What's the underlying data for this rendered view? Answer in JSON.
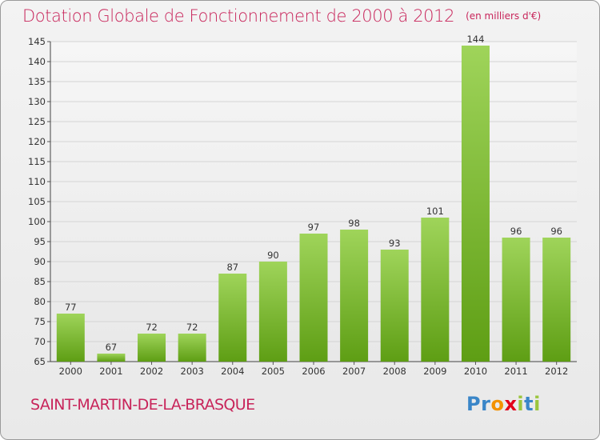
{
  "header": {
    "title": "Dotation Globale de Fonctionnement de 2000 à 2012",
    "unit": "(en milliers d'€)"
  },
  "footer": {
    "commune": "SAINT-MARTIN-DE-LA-BRASQUE",
    "logo_letters": [
      "P",
      "r",
      "o",
      "x",
      "i",
      "t",
      "i"
    ]
  },
  "colors": {
    "title": "#c8245a",
    "bar_top": "#9fd45a",
    "bar_bottom": "#5e9e14",
    "logo": [
      "#3a86c8",
      "#3a86c8",
      "#f39200",
      "#e2001a",
      "#9bc53d",
      "#3a86c8",
      "#9bc53d"
    ]
  },
  "chart_data": {
    "type": "bar",
    "title": "Dotation Globale de Fonctionnement de 2000 à 2012",
    "subtitle": "(en milliers d'€)",
    "categories": [
      "2000",
      "2001",
      "2002",
      "2003",
      "2004",
      "2005",
      "2006",
      "2007",
      "2008",
      "2009",
      "2010",
      "2011",
      "2012"
    ],
    "values": [
      77,
      67,
      72,
      72,
      87,
      90,
      97,
      98,
      93,
      101,
      144,
      96,
      96
    ],
    "ylim": [
      65,
      145
    ],
    "yticks": [
      65,
      70,
      75,
      80,
      85,
      90,
      95,
      100,
      105,
      110,
      115,
      120,
      125,
      130,
      135,
      140,
      145
    ],
    "xlabel": "",
    "ylabel": "",
    "grid": true,
    "legend": "none"
  }
}
